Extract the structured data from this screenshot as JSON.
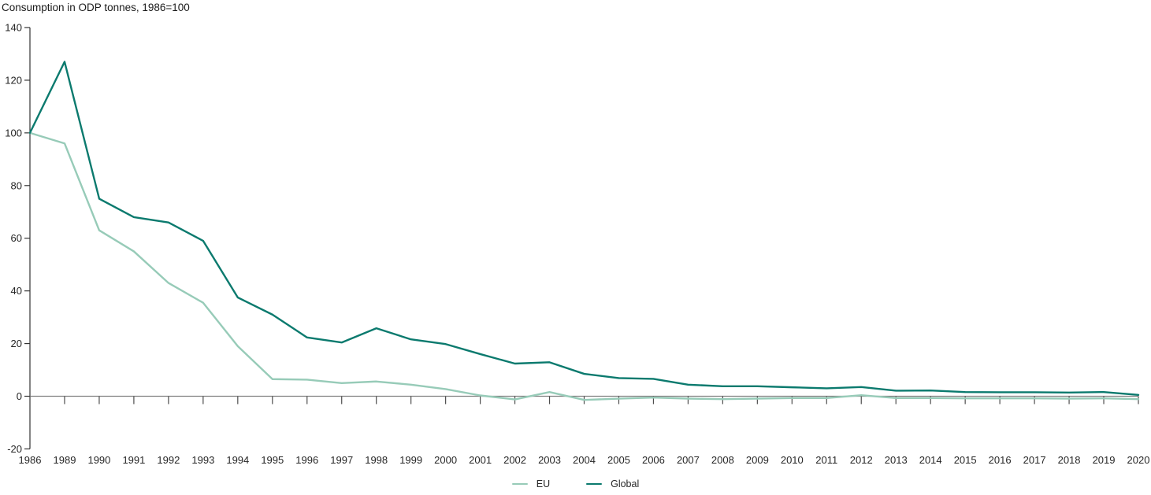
{
  "title": "Consumption in ODP tonnes, 1986=100",
  "colors": {
    "eu_line": "#97cbb8",
    "global_line": "#0b7a6e",
    "zero_line": "#808080",
    "axis": "#333333",
    "label_text": "#262626",
    "title_text": "#1a1a1a"
  },
  "legend": {
    "items": [
      {
        "label": "EU"
      },
      {
        "label": "Global"
      }
    ]
  },
  "chart_data": {
    "type": "line",
    "title": "Consumption in ODP tonnes, 1986=100",
    "xlabel": "",
    "ylabel": "",
    "ylim": [
      -20,
      140
    ],
    "yticks": [
      140,
      120,
      100,
      80,
      60,
      40,
      20,
      0,
      -20
    ],
    "grid": false,
    "zero_line": true,
    "legend_position": "bottom-center",
    "x": [
      1986,
      1989,
      1990,
      1991,
      1992,
      1993,
      1994,
      1995,
      1996,
      1997,
      1998,
      1999,
      2000,
      2001,
      2002,
      2003,
      2004,
      2005,
      2006,
      2007,
      2008,
      2009,
      2010,
      2011,
      2012,
      2013,
      2014,
      2015,
      2016,
      2017,
      2018,
      2019,
      2020
    ],
    "series": [
      {
        "name": "EU",
        "color": "#97cbb8",
        "values": [
          100,
          96,
          63,
          55,
          43,
          35.5,
          19,
          6.5,
          6.3,
          5,
          5.6,
          4.4,
          2.7,
          0.3,
          -1.2,
          1.6,
          -1.4,
          -0.9,
          -0.5,
          -0.9,
          -1.1,
          -0.9,
          -0.7,
          -0.7,
          0.4,
          -0.7,
          -0.7,
          -0.8,
          -0.8,
          -0.8,
          -0.9,
          -0.8,
          -1.1
        ]
      },
      {
        "name": "Global",
        "color": "#0b7a6e",
        "values": [
          100,
          127,
          75,
          68,
          66,
          59,
          37.5,
          31,
          22.3,
          20.4,
          25.8,
          21.6,
          19.8,
          16,
          12.4,
          12.9,
          8.5,
          6.9,
          6.6,
          4.4,
          3.8,
          3.8,
          3.4,
          3,
          3.5,
          2.1,
          2.2,
          1.6,
          1.5,
          1.5,
          1.4,
          1.6,
          0.5
        ]
      }
    ]
  }
}
